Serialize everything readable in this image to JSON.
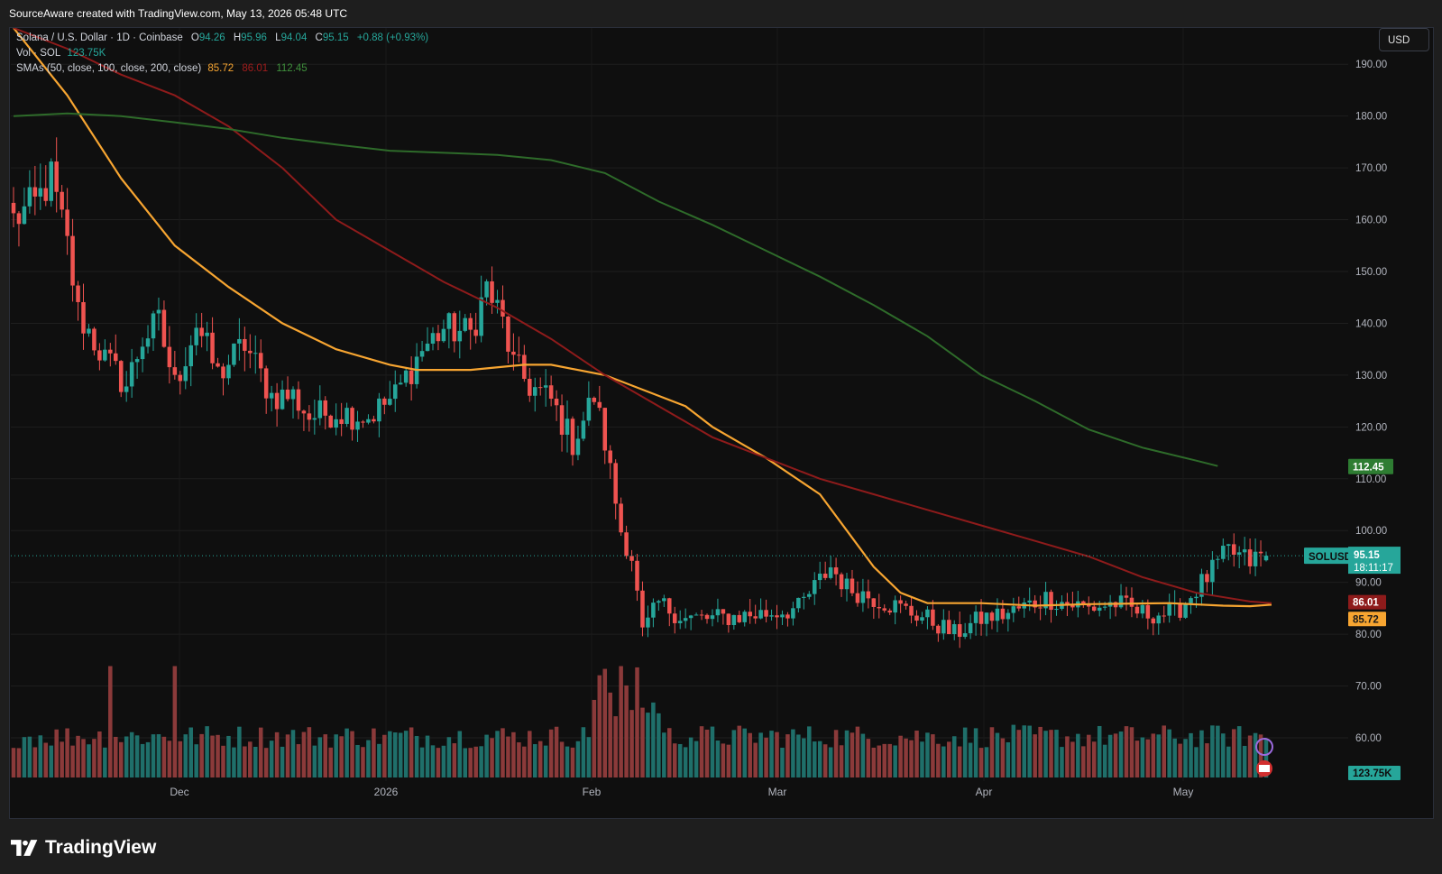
{
  "header": {
    "credit": "SourceAware created with TradingView.com, May 13, 2026 05:48 UTC"
  },
  "legend": {
    "symbol": "Solana / U.S. Dollar · 1D · Coinbase",
    "o_label": "O",
    "o_value": "94.26",
    "h_label": "H",
    "h_value": "95.96",
    "l_label": "L",
    "l_value": "94.04",
    "c_label": "C",
    "c_value": "95.15",
    "change": "+0.88 (+0.93%)",
    "vol_label": "Vol · SOL",
    "vol_value": "123.75K",
    "sma_label": "SMAs (50, close, 100, close, 200, close)",
    "sma50_value": "85.72",
    "sma100_value": "86.01",
    "sma200_value": "112.45"
  },
  "currency_button": "USD",
  "brand": {
    "name": "TradingView",
    "icon": "tradingview-logo-icon"
  },
  "colors": {
    "up": "#26a69a",
    "down": "#ef5350",
    "vol_up": "#1f6f6a",
    "vol_down": "#8b3a3a",
    "sma50": "#f7a531",
    "sma100": "#8e1b1b",
    "sma200": "#2e6b2a",
    "background": "#0f0f0f",
    "grid": "#1c1c1c"
  },
  "chart_data": {
    "type": "candlestick",
    "title": "Solana / U.S. Dollar · 1D · Coinbase",
    "y_axis_ticks": [
      "190.00",
      "180.00",
      "170.00",
      "160.00",
      "150.00",
      "140.00",
      "130.00",
      "120.00",
      "110.00",
      "100.00",
      "90.00",
      "80.00",
      "70.00",
      "60.00"
    ],
    "ylim": [
      56,
      197
    ],
    "x_axis_labels": [
      "Dec",
      "2026",
      "Feb",
      "Mar",
      "Apr",
      "May"
    ],
    "price_labels": {
      "symbol_tag": "SOLUSD",
      "last_price": "95.15",
      "countdown": "18:11:17",
      "sma200_tag": "112.45",
      "sma100_tag": "86.01",
      "sma50_tag": "85.72",
      "volume_tag": "123.75K"
    },
    "series": [
      {
        "name": "SMA 50",
        "color": "#f7a531",
        "points": [
          [
            0,
            197
          ],
          [
            10,
            184
          ],
          [
            20,
            168
          ],
          [
            30,
            155
          ],
          [
            40,
            147
          ],
          [
            50,
            140
          ],
          [
            60,
            135
          ],
          [
            70,
            132
          ],
          [
            75,
            131
          ],
          [
            85,
            131
          ],
          [
            95,
            132
          ],
          [
            100,
            132
          ],
          [
            110,
            130
          ],
          [
            120,
            126
          ],
          [
            125,
            124
          ],
          [
            130,
            120
          ],
          [
            140,
            114
          ],
          [
            150,
            107
          ],
          [
            155,
            100
          ],
          [
            160,
            93
          ],
          [
            165,
            88
          ],
          [
            170,
            86
          ],
          [
            180,
            86
          ],
          [
            190,
            85.5
          ],
          [
            200,
            85.8
          ],
          [
            215,
            86
          ],
          [
            225,
            85.5
          ],
          [
            230,
            85.4
          ],
          [
            234,
            85.7
          ]
        ]
      },
      {
        "name": "SMA 100",
        "color": "#8e1b1b",
        "points": [
          [
            0,
            197
          ],
          [
            10,
            193
          ],
          [
            20,
            188
          ],
          [
            30,
            184
          ],
          [
            40,
            178
          ],
          [
            50,
            170
          ],
          [
            60,
            160
          ],
          [
            70,
            154
          ],
          [
            80,
            148
          ],
          [
            90,
            143
          ],
          [
            100,
            137
          ],
          [
            110,
            130
          ],
          [
            120,
            124
          ],
          [
            130,
            118
          ],
          [
            140,
            114
          ],
          [
            150,
            110
          ],
          [
            160,
            107
          ],
          [
            170,
            104
          ],
          [
            180,
            101
          ],
          [
            190,
            98
          ],
          [
            200,
            95
          ],
          [
            210,
            91
          ],
          [
            220,
            88
          ],
          [
            230,
            86.3
          ],
          [
            234,
            86
          ]
        ]
      },
      {
        "name": "SMA 200",
        "color": "#2e6b2a",
        "points": [
          [
            0,
            180
          ],
          [
            10,
            180.5
          ],
          [
            20,
            180
          ],
          [
            30,
            178.8
          ],
          [
            40,
            177.5
          ],
          [
            50,
            175.8
          ],
          [
            60,
            174.5
          ],
          [
            70,
            173.3
          ],
          [
            80,
            172.9
          ],
          [
            90,
            172.5
          ],
          [
            100,
            171.5
          ],
          [
            110,
            169
          ],
          [
            120,
            163.5
          ],
          [
            130,
            159
          ],
          [
            140,
            154
          ],
          [
            150,
            149
          ],
          [
            160,
            143.5
          ],
          [
            170,
            137.5
          ],
          [
            180,
            130
          ],
          [
            190,
            125
          ],
          [
            200,
            119.5
          ],
          [
            210,
            116
          ],
          [
            220,
            113.5
          ],
          [
            224,
            112.45
          ]
        ]
      }
    ],
    "candle_spec": "deterministic reconstruction of daily OHLC from Nov 2025 to May 13 2026 (~234 daily bars)",
    "candle_anchors": [
      [
        0,
        160
      ],
      [
        4,
        163
      ],
      [
        7,
        168
      ],
      [
        10,
        155
      ],
      [
        12,
        142
      ],
      [
        17,
        133
      ],
      [
        21,
        128
      ],
      [
        24,
        137
      ],
      [
        27,
        140
      ],
      [
        30,
        128
      ],
      [
        34,
        140
      ],
      [
        38,
        130
      ],
      [
        43,
        136
      ],
      [
        48,
        126
      ],
      [
        52,
        126
      ],
      [
        55,
        122
      ],
      [
        60,
        123
      ],
      [
        66,
        122
      ],
      [
        71,
        126
      ],
      [
        76,
        135
      ],
      [
        80,
        139
      ],
      [
        85,
        138
      ],
      [
        88,
        147
      ],
      [
        91,
        140
      ],
      [
        93,
        132
      ],
      [
        96,
        128
      ],
      [
        100,
        125
      ],
      [
        104,
        117
      ],
      [
        108,
        126
      ],
      [
        110,
        117
      ],
      [
        113,
        100
      ],
      [
        115,
        95
      ],
      [
        117,
        80
      ],
      [
        120,
        86
      ],
      [
        125,
        83
      ],
      [
        130,
        83
      ],
      [
        140,
        84
      ],
      [
        146,
        85
      ],
      [
        152,
        93
      ],
      [
        155,
        89
      ],
      [
        160,
        87
      ],
      [
        170,
        83
      ],
      [
        175,
        80
      ],
      [
        180,
        83
      ],
      [
        185,
        84
      ],
      [
        192,
        87
      ],
      [
        200,
        85
      ],
      [
        205,
        86
      ],
      [
        210,
        84
      ],
      [
        216,
        84
      ],
      [
        222,
        91
      ],
      [
        226,
        96
      ],
      [
        230,
        94
      ],
      [
        232,
        95.15
      ]
    ],
    "volume_tag": "123.75K"
  }
}
